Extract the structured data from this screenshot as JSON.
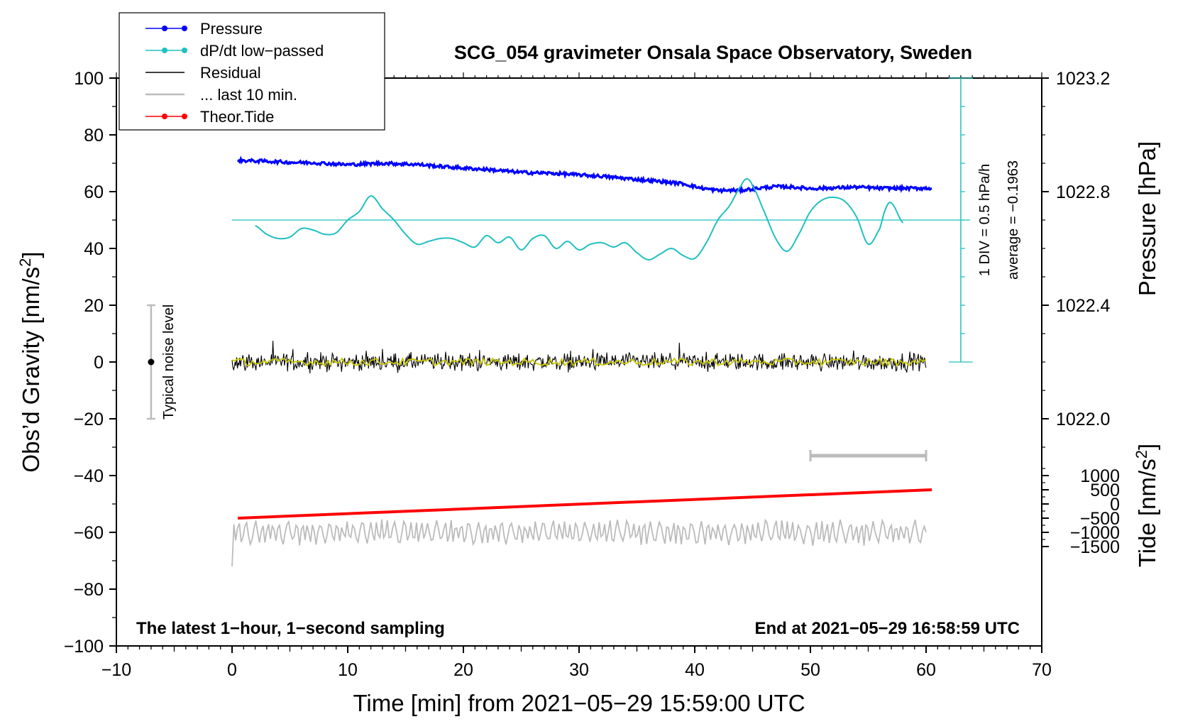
{
  "chart_data": {
    "type": "line",
    "title": "SCG_054 gravimeter Onsala Space Observatory, Sweden",
    "xlabel": "Time [min] from 2021−05−29 15:59:00 UTC",
    "ylabel_left": "Obs’d Gravity [nm/s",
    "ylabel_left_sup": "2",
    "ylabel_left_tail": "]",
    "ylabel_pressure": "Pressure [hPa]",
    "ylabel_tide": "Tide [nm/s",
    "ylabel_tide_sup": "2",
    "ylabel_tide_tail": "]",
    "xlim": [
      -10,
      70
    ],
    "ylim": [
      -100,
      100
    ],
    "x_ticks": [
      -10,
      0,
      10,
      20,
      30,
      40,
      50,
      60,
      70
    ],
    "x_tick_labels": [
      "−10",
      "0",
      "10",
      "20",
      "30",
      "40",
      "50",
      "60",
      "70"
    ],
    "y_ticks": [
      100,
      80,
      60,
      40,
      20,
      0,
      -20,
      -40,
      -60,
      -80,
      -100
    ],
    "y_tick_labels": [
      "100",
      "80",
      "60",
      "40",
      "20",
      "0",
      "−20",
      "−40",
      "−60",
      "−80",
      "−100"
    ],
    "pressure_axis": {
      "ticks": [
        1023.2,
        1022.8,
        1022.4,
        1022.0
      ],
      "tick_labels": [
        "1023.2",
        "1022.8",
        "1022.4",
        "1022.0"
      ],
      "map": {
        "p_ref": 1022.8,
        "y_ref": 60,
        "slope_per_hpa": 100
      }
    },
    "tide_axis": {
      "ticks": [
        1000,
        500,
        0,
        -500,
        -1000,
        -1500
      ],
      "tick_labels": [
        "1000",
        "500",
        "0",
        "−500",
        "−1000",
        "−1500"
      ],
      "map": {
        "t_ref": 0,
        "y_ref": -50,
        "slope_per_unit": 0.01
      }
    },
    "legend": {
      "position": "top-left",
      "entries": [
        {
          "label": "Pressure",
          "color": "#0000ff",
          "marker": true
        },
        {
          "label": "dP/dt low−passed",
          "color": "#20c0c0",
          "marker": true
        },
        {
          "label": "Residual",
          "color": "#000000",
          "marker": false
        },
        {
          "label": "... last 10 min.",
          "color": "#bbbbbb",
          "marker": false
        },
        {
          "label": "Theor.Tide",
          "color": "#ff0000",
          "marker": true
        }
      ]
    },
    "annotations": {
      "bottom_left": "The latest 1−hour, 1−second sampling",
      "bottom_right": "End at 2021−05−29 16:58:59 UTC",
      "noise_label": "Typical noise level",
      "div_label": "1 DIV = 0.5 hPa/h",
      "avg_label": "average = −0.1963"
    },
    "noise_bar": {
      "x": -7,
      "y": 0,
      "low": -20,
      "high": 20
    },
    "dpdt_scale": {
      "x": 63,
      "y_bottom": 0,
      "y_top": 100,
      "divisions": 10
    },
    "gray_range_bar": {
      "x_start": 50,
      "x_end": 60,
      "y": -33
    },
    "series": [
      {
        "name": "Pressure",
        "color": "#0000ff",
        "x": [
          0.5,
          3,
          5,
          7,
          10,
          13,
          16,
          18,
          20,
          22,
          25,
          28,
          30,
          32,
          35,
          37,
          39,
          40.5,
          42,
          44,
          45.5,
          47,
          48.5,
          50,
          52,
          54,
          56,
          58,
          60.5
        ],
        "y": [
          71,
          70.7,
          70.3,
          70.2,
          69.5,
          70,
          69.6,
          68.9,
          68.3,
          67.8,
          66.8,
          66.4,
          65.9,
          65.4,
          64.3,
          63.6,
          62.8,
          61.3,
          60.4,
          60.5,
          61.2,
          61.8,
          61.6,
          61.1,
          61.3,
          61.6,
          61.2,
          61.2,
          61.2
        ],
        "noise": 0.55
      },
      {
        "name": "dP/dt low−passed",
        "color": "#20c0c0",
        "x": [
          2,
          3,
          4,
          5,
          6,
          7,
          8,
          9,
          10,
          11,
          12,
          13,
          14,
          15,
          16,
          17,
          18,
          19,
          20,
          21,
          22,
          23,
          24,
          25,
          26,
          27,
          28,
          29,
          30,
          31,
          32,
          33,
          34,
          35,
          36,
          37,
          38,
          39,
          40,
          41,
          42,
          43,
          44,
          44.5,
          45,
          46,
          47,
          48,
          49,
          50,
          51,
          52,
          53,
          54,
          55,
          56,
          56.5,
          57,
          58
        ],
        "y": [
          48,
          45,
          43.5,
          44,
          47,
          46.5,
          45,
          45.5,
          50,
          53,
          58.5,
          54,
          50,
          45,
          41.5,
          42.5,
          43.5,
          43.5,
          42,
          40.5,
          44.5,
          42,
          44,
          39.5,
          43.5,
          44.5,
          40,
          42.5,
          39.5,
          41.5,
          42,
          40.5,
          42,
          38.5,
          36,
          38,
          40,
          37.5,
          36.5,
          42,
          50,
          55,
          62,
          64.5,
          62,
          53,
          43.5,
          39,
          45,
          53,
          57,
          58,
          56.5,
          51,
          41.5,
          47,
          54,
          56,
          49
        ]
      },
      {
        "name": "Residual",
        "color": "#000000",
        "x_start": 0,
        "x_end": 60,
        "points": 900,
        "amplitude": 4.5
      },
      {
        "name": "Residual (smoothed)",
        "color": "#c8c800",
        "x_start": 0,
        "x_end": 60,
        "points": 240,
        "amplitude": 1.3
      },
      {
        "name": "... last 10 min.",
        "color": "#bbbbbb",
        "x_start": 0,
        "x_end": 60,
        "points": 380,
        "y_center": -60,
        "amplitude": 4.5,
        "y_first": -72
      },
      {
        "name": "Theor.Tide",
        "color": "#ff0000",
        "x": [
          0.5,
          60.5
        ],
        "y": [
          -55,
          -45
        ]
      }
    ]
  }
}
